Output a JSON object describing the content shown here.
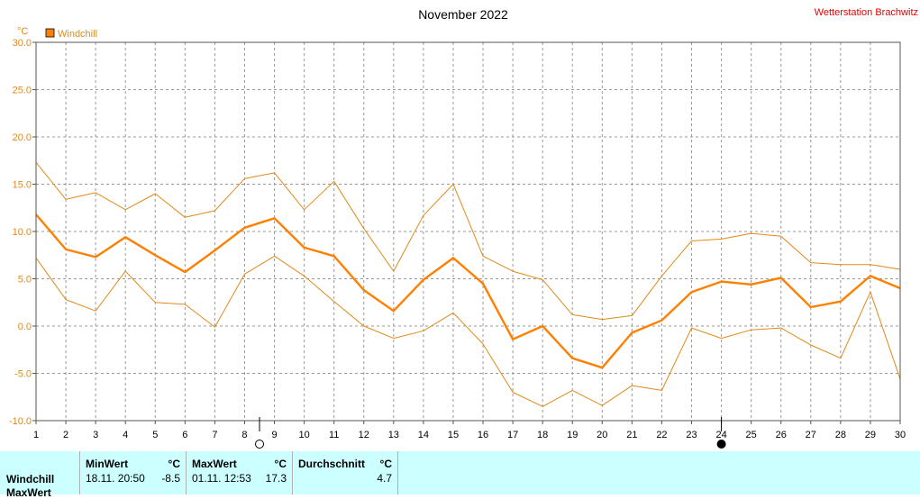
{
  "station": "Wetterstation Brachwitz",
  "colors": {
    "series": "#ff8000",
    "range": "#e08a1a",
    "station": "#e00000",
    "grid": "#999999",
    "stats_bg": "#ccffff"
  },
  "chart_data": {
    "type": "line",
    "title": "November 2022",
    "ylabel": "°C",
    "ylim": [
      -10,
      30
    ],
    "yticks": [
      "30.0",
      "25.0",
      "20.0",
      "15.0",
      "10.0",
      "5.0",
      "0.0",
      "-5.0",
      "-10.0"
    ],
    "xlim": [
      1,
      30
    ],
    "x": [
      1,
      2,
      3,
      4,
      5,
      6,
      7,
      8,
      9,
      10,
      11,
      12,
      13,
      14,
      15,
      16,
      17,
      18,
      19,
      20,
      21,
      22,
      23,
      24,
      25,
      26,
      27,
      28,
      29,
      30
    ],
    "grid": true,
    "legend": "top-left",
    "moon_markers": [
      {
        "type": "full-moon",
        "x": 8.5
      },
      {
        "type": "new-moon",
        "x": 24
      }
    ],
    "series": [
      {
        "name": "Windchill",
        "role": "mean",
        "values": [
          11.8,
          8.1,
          7.3,
          9.4,
          7.5,
          5.7,
          8.0,
          10.4,
          11.4,
          8.3,
          7.4,
          3.8,
          1.6,
          4.9,
          7.2,
          4.5,
          -1.4,
          0.0,
          -3.4,
          -4.4,
          -0.7,
          0.6,
          3.6,
          4.7,
          4.4,
          5.1,
          2.0,
          2.6,
          5.3,
          4.0
        ]
      },
      {
        "role": "max",
        "values": [
          17.3,
          13.4,
          14.1,
          12.3,
          14.0,
          11.5,
          12.2,
          15.6,
          16.2,
          12.3,
          15.3,
          10.3,
          5.8,
          11.7,
          15.0,
          7.4,
          5.8,
          4.9,
          1.2,
          0.7,
          1.1,
          5.3,
          9.0,
          9.2,
          9.8,
          9.5,
          6.7,
          6.5,
          6.5,
          6.0
        ]
      },
      {
        "role": "min",
        "values": [
          7.2,
          2.8,
          1.6,
          5.8,
          2.5,
          2.3,
          -0.1,
          5.5,
          7.4,
          5.3,
          2.6,
          0.0,
          -1.3,
          -0.5,
          1.4,
          -1.9,
          -7.0,
          -8.5,
          -6.8,
          -8.4,
          -6.3,
          -6.8,
          -0.2,
          -1.3,
          -0.4,
          -0.2,
          -2.0,
          -3.4,
          3.6,
          -5.6
        ]
      }
    ]
  },
  "stats": {
    "row_labels": [
      "Windchill",
      "MaxWert"
    ],
    "headers": {
      "min": "MinWert",
      "max": "MaxWert",
      "avg": "Durchschnitt",
      "unit": "°C"
    },
    "min": {
      "datetime": "18.11.  20:50",
      "value": "-8.5"
    },
    "max": {
      "datetime": "01.11.  12:53",
      "value": "17.3"
    },
    "avg": {
      "value": "4.7"
    }
  }
}
